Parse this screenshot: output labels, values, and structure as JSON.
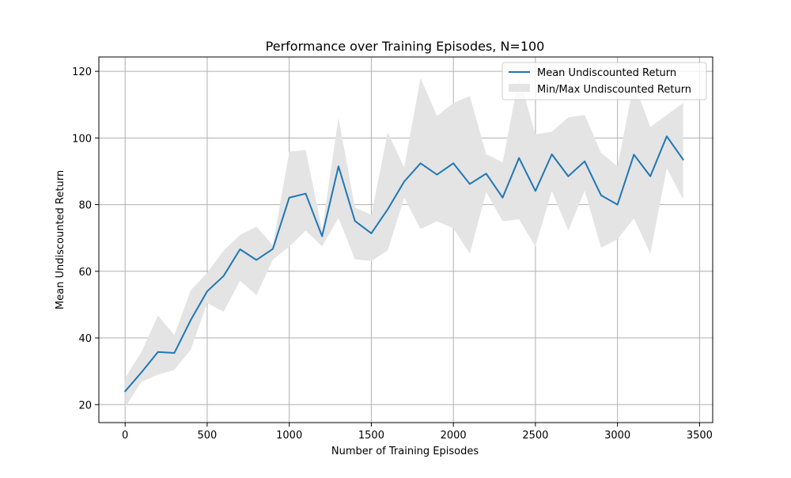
{
  "chart_data": {
    "type": "line",
    "title": "Performance over Training Episodes, N=100",
    "xlabel": "Number of Training Episodes",
    "ylabel": "Mean Undiscounted Return",
    "xlim": [
      -160,
      3580
    ],
    "ylim": [
      14.6,
      124.3
    ],
    "x_ticks": [
      0,
      500,
      1000,
      1500,
      2000,
      2500,
      3000,
      3500
    ],
    "y_ticks": [
      20,
      40,
      60,
      80,
      100,
      120
    ],
    "grid": true,
    "legend_position": "top-right",
    "x": [
      0,
      100,
      200,
      300,
      400,
      500,
      600,
      700,
      800,
      900,
      1000,
      1100,
      1200,
      1300,
      1400,
      1500,
      1600,
      1700,
      1800,
      1900,
      2000,
      2100,
      2200,
      2300,
      2400,
      2500,
      2600,
      2700,
      2800,
      2900,
      3000,
      3100,
      3200,
      3300,
      3400
    ],
    "series": [
      {
        "name": "Mean Undiscounted Return",
        "type": "line",
        "color": "#1f77b4",
        "values": [
          24.0,
          29.7,
          35.8,
          35.5,
          45.4,
          54.0,
          58.6,
          66.6,
          63.4,
          66.7,
          82.1,
          83.3,
          70.5,
          91.5,
          75.1,
          71.4,
          78.6,
          86.9,
          92.4,
          89.0,
          92.4,
          86.2,
          89.3,
          82.1,
          94.0,
          84.1,
          95.1,
          88.5,
          93.0,
          82.8,
          80.0,
          95.0,
          88.5,
          100.5,
          93.5
        ]
      },
      {
        "name": "Min/Max Undiscounted Return",
        "type": "area",
        "color": "#e4e4e4",
        "min": [
          19.2,
          26.9,
          29.0,
          30.4,
          36.5,
          50.5,
          47.8,
          57.2,
          52.8,
          63.5,
          67.4,
          72.2,
          67.5,
          76.0,
          63.6,
          63.1,
          66.2,
          82.1,
          72.7,
          75.0,
          72.9,
          65.3,
          83.8,
          75.0,
          75.6,
          67.5,
          84.1,
          72.2,
          84.2,
          67.1,
          69.6,
          75.9,
          65.3,
          90.9,
          81.6
        ],
        "max": [
          28.0,
          35.8,
          46.7,
          40.9,
          54.3,
          59.6,
          66.2,
          70.9,
          73.4,
          67.8,
          95.9,
          96.4,
          72.3,
          106.1,
          79.2,
          76.9,
          101.7,
          91.1,
          118.0,
          106.6,
          110.5,
          112.6,
          95.1,
          92.7,
          118.2,
          101.1,
          101.9,
          106.2,
          106.9,
          95.5,
          91.5,
          116.6,
          103.3,
          106.9,
          110.5
        ]
      }
    ]
  }
}
